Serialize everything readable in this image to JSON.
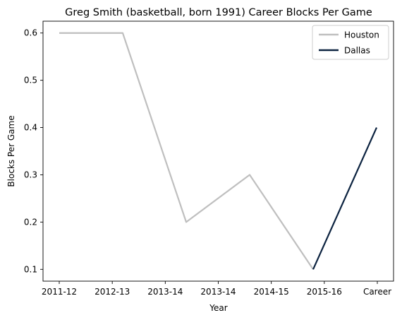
{
  "chart_data": {
    "type": "line",
    "title": "Greg Smith (basketball, born 1991) Career Blocks Per Game",
    "xlabel": "Year",
    "ylabel": "Blocks Per Game",
    "categories": [
      "2011-12",
      "2012-13",
      "2013-14",
      "2013-14",
      "2014-15",
      "2015-16",
      "Career"
    ],
    "y_ticks": [
      "0.1",
      "0.2",
      "0.3",
      "0.4",
      "0.5",
      "0.6"
    ],
    "ylim": [
      0.075,
      0.625
    ],
    "grid": false,
    "legend_position": "top-right",
    "series": [
      {
        "name": "Houston",
        "color": "#bfbfbf",
        "points": [
          {
            "x": "2011-12",
            "y": 0.6
          },
          {
            "x": "2012-13",
            "y": 0.6
          },
          {
            "x": "2013-14",
            "y": 0.2
          },
          {
            "x": "2014-15",
            "y": 0.3
          },
          {
            "x": "2015-16",
            "y": 0.1
          }
        ]
      },
      {
        "name": "Dallas",
        "color": "#0c2340",
        "points": [
          {
            "x": "2015-16",
            "y": 0.1
          },
          {
            "x": "Career",
            "y": 0.4
          }
        ]
      }
    ]
  }
}
